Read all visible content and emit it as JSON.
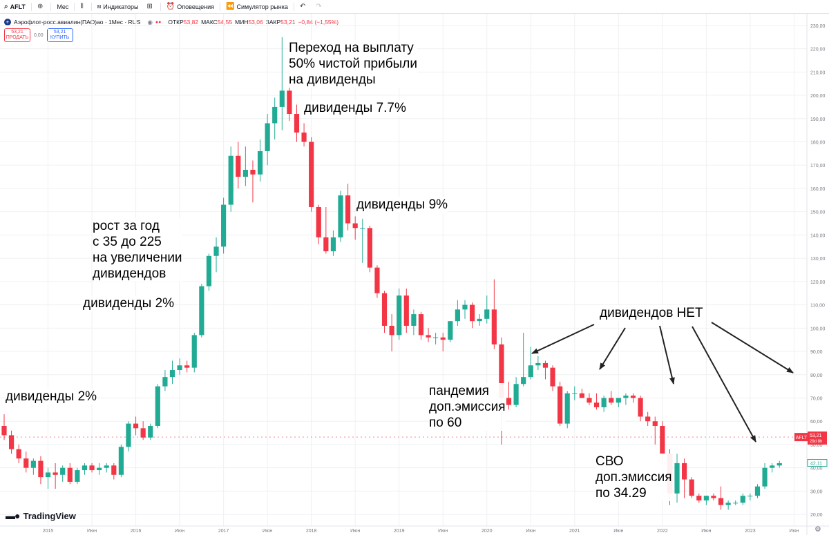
{
  "toolbar": {
    "symbol": "AFLT",
    "interval": "Мес",
    "indicators": "Индикаторы",
    "alerts": "Оповещения",
    "replay": "Симулятор рынка"
  },
  "legend": {
    "name": "Аэрофлот-росс.авиалин(ПАО)ао · 1Мес · RUS",
    "open_label": "ОТКР",
    "open": "53,82",
    "high_label": "МАКС",
    "high": "54,55",
    "low_label": "МИН",
    "low": "53,06",
    "close_label": "ЗАКР",
    "close": "53,21",
    "change": "−0,84 (−1,55%)"
  },
  "trade": {
    "sell_price": "53,21",
    "sell_label": "ПРОДАТЬ",
    "spread": "0,00",
    "buy_price": "53,21",
    "buy_label": "КУПИТЬ"
  },
  "price_tags": {
    "current_symbol": "AFLT",
    "current_price": "53,21",
    "countdown": "29d 8h",
    "secondary_price": "42,11"
  },
  "annotations": [
    {
      "lines": [
        "Переход на выплату",
        "50% чистой прибыли",
        "на дивиденды"
      ]
    },
    {
      "lines": [
        "дивиденды 7.7%"
      ]
    },
    {
      "lines": [
        "дивиденды 9%"
      ]
    },
    {
      "lines": [
        "рост за год",
        "с 35 до 225",
        "на увеличении",
        "дивидендов"
      ]
    },
    {
      "lines": [
        "дивиденды 2%"
      ]
    },
    {
      "lines": [
        "дивиденды 2%"
      ]
    },
    {
      "lines": [
        "дивидендов НЕТ"
      ]
    },
    {
      "lines": [
        "пандемия",
        "доп.эмиссия",
        "по 60"
      ]
    },
    {
      "lines": [
        "СВО",
        "доп.эмиссия",
        "по 34.29"
      ]
    }
  ],
  "logo": "TradingView",
  "colors": {
    "up": "#22ab94",
    "down": "#f23645",
    "grid": "#eef0f3",
    "axis": "#787b86"
  },
  "chart_data": {
    "type": "candlestick",
    "interval": "month",
    "y_range": [
      15,
      235
    ],
    "y_ticks": [
      20,
      30,
      40,
      50,
      60,
      70,
      80,
      90,
      100,
      110,
      120,
      130,
      140,
      150,
      160,
      170,
      180,
      190,
      200,
      210,
      220,
      230
    ],
    "y_tick_labels": [
      "20,00",
      "30,00",
      "40,00",
      "50,00",
      "60,00",
      "70,00",
      "80,00",
      "90,00",
      "100,00",
      "110,00",
      "120,00",
      "130,00",
      "140,00",
      "150,00",
      "160,00",
      "170,00",
      "180,00",
      "190,00",
      "200,00",
      "210,00",
      "220,00",
      "230,00"
    ],
    "x_range": [
      "2014-07",
      "2023-08"
    ],
    "x_ticks": [
      {
        "date": "2015-01",
        "label": "2015"
      },
      {
        "date": "2015-07",
        "label": "Июн"
      },
      {
        "date": "2016-01",
        "label": "2016"
      },
      {
        "date": "2016-07",
        "label": "Июн"
      },
      {
        "date": "2017-01",
        "label": "2017"
      },
      {
        "date": "2017-07",
        "label": "Июн"
      },
      {
        "date": "2018-01",
        "label": "2018"
      },
      {
        "date": "2018-07",
        "label": "Июн"
      },
      {
        "date": "2019-01",
        "label": "2019"
      },
      {
        "date": "2019-07",
        "label": "Июн"
      },
      {
        "date": "2020-01",
        "label": "2020"
      },
      {
        "date": "2020-07",
        "label": "Июн"
      },
      {
        "date": "2021-01",
        "label": "2021"
      },
      {
        "date": "2021-07",
        "label": "Июн"
      },
      {
        "date": "2022-01",
        "label": "2022"
      },
      {
        "date": "2022-07",
        "label": "Июн"
      },
      {
        "date": "2023-01",
        "label": "2023"
      },
      {
        "date": "2023-07",
        "label": "Июн"
      }
    ],
    "current_price": 53.21,
    "secondary_price": 42.11,
    "candles": [
      {
        "t": "2014-07",
        "o": 58,
        "h": 63,
        "l": 52,
        "c": 54
      },
      {
        "t": "2014-08",
        "o": 54,
        "h": 56,
        "l": 46,
        "c": 48
      },
      {
        "t": "2014-09",
        "o": 48,
        "h": 50,
        "l": 42,
        "c": 44
      },
      {
        "t": "2014-10",
        "o": 44,
        "h": 47,
        "l": 38,
        "c": 40
      },
      {
        "t": "2014-11",
        "o": 40,
        "h": 44,
        "l": 37,
        "c": 43
      },
      {
        "t": "2014-12",
        "o": 43,
        "h": 45,
        "l": 33,
        "c": 36
      },
      {
        "t": "2015-01",
        "o": 36,
        "h": 40,
        "l": 31,
        "c": 38
      },
      {
        "t": "2015-02",
        "o": 38,
        "h": 42,
        "l": 31,
        "c": 37
      },
      {
        "t": "2015-03",
        "o": 37,
        "h": 41,
        "l": 34,
        "c": 40
      },
      {
        "t": "2015-04",
        "o": 40,
        "h": 42,
        "l": 33,
        "c": 34
      },
      {
        "t": "2015-05",
        "o": 34,
        "h": 40,
        "l": 33,
        "c": 39
      },
      {
        "t": "2015-06",
        "o": 39,
        "h": 42,
        "l": 37,
        "c": 41
      },
      {
        "t": "2015-07",
        "o": 41,
        "h": 42,
        "l": 38,
        "c": 39
      },
      {
        "t": "2015-08",
        "o": 39,
        "h": 42,
        "l": 37,
        "c": 40
      },
      {
        "t": "2015-09",
        "o": 40,
        "h": 42,
        "l": 38,
        "c": 41
      },
      {
        "t": "2015-10",
        "o": 41,
        "h": 42,
        "l": 35,
        "c": 37
      },
      {
        "t": "2015-11",
        "o": 37,
        "h": 50,
        "l": 36,
        "c": 49
      },
      {
        "t": "2015-12",
        "o": 49,
        "h": 60,
        "l": 47,
        "c": 59
      },
      {
        "t": "2016-01",
        "o": 59,
        "h": 62,
        "l": 54,
        "c": 57
      },
      {
        "t": "2016-02",
        "o": 57,
        "h": 60,
        "l": 52,
        "c": 53
      },
      {
        "t": "2016-03",
        "o": 53,
        "h": 59,
        "l": 52,
        "c": 58
      },
      {
        "t": "2016-04",
        "o": 58,
        "h": 76,
        "l": 57,
        "c": 75
      },
      {
        "t": "2016-05",
        "o": 75,
        "h": 82,
        "l": 73,
        "c": 79
      },
      {
        "t": "2016-06",
        "o": 79,
        "h": 86,
        "l": 76,
        "c": 82
      },
      {
        "t": "2016-07",
        "o": 82,
        "h": 87,
        "l": 80,
        "c": 84
      },
      {
        "t": "2016-08",
        "o": 84,
        "h": 86,
        "l": 81,
        "c": 83
      },
      {
        "t": "2016-09",
        "o": 83,
        "h": 98,
        "l": 81,
        "c": 97
      },
      {
        "t": "2016-10",
        "o": 97,
        "h": 119,
        "l": 96,
        "c": 118
      },
      {
        "t": "2016-11",
        "o": 118,
        "h": 132,
        "l": 116,
        "c": 131
      },
      {
        "t": "2016-12",
        "o": 131,
        "h": 139,
        "l": 124,
        "c": 135
      },
      {
        "t": "2017-01",
        "o": 135,
        "h": 156,
        "l": 132,
        "c": 153
      },
      {
        "t": "2017-02",
        "o": 153,
        "h": 178,
        "l": 150,
        "c": 174
      },
      {
        "t": "2017-03",
        "o": 174,
        "h": 180,
        "l": 160,
        "c": 165
      },
      {
        "t": "2017-04",
        "o": 165,
        "h": 178,
        "l": 161,
        "c": 168
      },
      {
        "t": "2017-05",
        "o": 168,
        "h": 172,
        "l": 154,
        "c": 166
      },
      {
        "t": "2017-06",
        "o": 166,
        "h": 181,
        "l": 163,
        "c": 176
      },
      {
        "t": "2017-07",
        "o": 176,
        "h": 192,
        "l": 170,
        "c": 188
      },
      {
        "t": "2017-08",
        "o": 188,
        "h": 199,
        "l": 181,
        "c": 195
      },
      {
        "t": "2017-09",
        "o": 195,
        "h": 225,
        "l": 185,
        "c": 202
      },
      {
        "t": "2017-10",
        "o": 202,
        "h": 214,
        "l": 189,
        "c": 192
      },
      {
        "t": "2017-11",
        "o": 192,
        "h": 196,
        "l": 180,
        "c": 184
      },
      {
        "t": "2017-12",
        "o": 184,
        "h": 188,
        "l": 178,
        "c": 180
      },
      {
        "t": "2018-01",
        "o": 180,
        "h": 182,
        "l": 150,
        "c": 152
      },
      {
        "t": "2018-02",
        "o": 152,
        "h": 153,
        "l": 136,
        "c": 139
      },
      {
        "t": "2018-03",
        "o": 139,
        "h": 152,
        "l": 132,
        "c": 133
      },
      {
        "t": "2018-04",
        "o": 133,
        "h": 142,
        "l": 131,
        "c": 139
      },
      {
        "t": "2018-05",
        "o": 139,
        "h": 159,
        "l": 137,
        "c": 157
      },
      {
        "t": "2018-06",
        "o": 157,
        "h": 162,
        "l": 142,
        "c": 145
      },
      {
        "t": "2018-07",
        "o": 145,
        "h": 148,
        "l": 138,
        "c": 143
      },
      {
        "t": "2018-08",
        "o": 143,
        "h": 147,
        "l": 128,
        "c": 143
      },
      {
        "t": "2018-09",
        "o": 143,
        "h": 144,
        "l": 124,
        "c": 126
      },
      {
        "t": "2018-10",
        "o": 126,
        "h": 127,
        "l": 113,
        "c": 115
      },
      {
        "t": "2018-11",
        "o": 115,
        "h": 116,
        "l": 98,
        "c": 101
      },
      {
        "t": "2018-12",
        "o": 101,
        "h": 106,
        "l": 90,
        "c": 97
      },
      {
        "t": "2019-01",
        "o": 97,
        "h": 117,
        "l": 95,
        "c": 114
      },
      {
        "t": "2019-02",
        "o": 114,
        "h": 117,
        "l": 98,
        "c": 101
      },
      {
        "t": "2019-03",
        "o": 101,
        "h": 108,
        "l": 97,
        "c": 106
      },
      {
        "t": "2019-04",
        "o": 106,
        "h": 107,
        "l": 95,
        "c": 97
      },
      {
        "t": "2019-05",
        "o": 97,
        "h": 100,
        "l": 94,
        "c": 96
      },
      {
        "t": "2019-06",
        "o": 96,
        "h": 98,
        "l": 93,
        "c": 96
      },
      {
        "t": "2019-07",
        "o": 96,
        "h": 98,
        "l": 90,
        "c": 95
      },
      {
        "t": "2019-08",
        "o": 95,
        "h": 103,
        "l": 94,
        "c": 103
      },
      {
        "t": "2019-09",
        "o": 103,
        "h": 112,
        "l": 101,
        "c": 108
      },
      {
        "t": "2019-10",
        "o": 108,
        "h": 112,
        "l": 104,
        "c": 110
      },
      {
        "t": "2019-11",
        "o": 110,
        "h": 111,
        "l": 100,
        "c": 103
      },
      {
        "t": "2019-12",
        "o": 103,
        "h": 106,
        "l": 101,
        "c": 104
      },
      {
        "t": "2020-01",
        "o": 104,
        "h": 114,
        "l": 102,
        "c": 108
      },
      {
        "t": "2020-02",
        "o": 108,
        "h": 121,
        "l": 91,
        "c": 93
      },
      {
        "t": "2020-03",
        "o": 93,
        "h": 96,
        "l": 50,
        "c": 70
      },
      {
        "t": "2020-04",
        "o": 70,
        "h": 77,
        "l": 65,
        "c": 67
      },
      {
        "t": "2020-05",
        "o": 67,
        "h": 79,
        "l": 66,
        "c": 76
      },
      {
        "t": "2020-06",
        "o": 76,
        "h": 98,
        "l": 75,
        "c": 79
      },
      {
        "t": "2020-07",
        "o": 79,
        "h": 92,
        "l": 78,
        "c": 84
      },
      {
        "t": "2020-08",
        "o": 84,
        "h": 88,
        "l": 82,
        "c": 85
      },
      {
        "t": "2020-09",
        "o": 85,
        "h": 86,
        "l": 78,
        "c": 83
      },
      {
        "t": "2020-10",
        "o": 83,
        "h": 84,
        "l": 73,
        "c": 75
      },
      {
        "t": "2020-11",
        "o": 75,
        "h": 77,
        "l": 58,
        "c": 59
      },
      {
        "t": "2020-12",
        "o": 59,
        "h": 73,
        "l": 57,
        "c": 72
      },
      {
        "t": "2021-01",
        "o": 72,
        "h": 75,
        "l": 69,
        "c": 72
      },
      {
        "t": "2021-02",
        "o": 72,
        "h": 74,
        "l": 70,
        "c": 70
      },
      {
        "t": "2021-03",
        "o": 70,
        "h": 72,
        "l": 67,
        "c": 68
      },
      {
        "t": "2021-04",
        "o": 68,
        "h": 72,
        "l": 65,
        "c": 66
      },
      {
        "t": "2021-05",
        "o": 66,
        "h": 71,
        "l": 64,
        "c": 70
      },
      {
        "t": "2021-06",
        "o": 70,
        "h": 73,
        "l": 67,
        "c": 68
      },
      {
        "t": "2021-07",
        "o": 68,
        "h": 70,
        "l": 66,
        "c": 70
      },
      {
        "t": "2021-08",
        "o": 70,
        "h": 72,
        "l": 67,
        "c": 71
      },
      {
        "t": "2021-09",
        "o": 71,
        "h": 72,
        "l": 68,
        "c": 70
      },
      {
        "t": "2021-10",
        "o": 70,
        "h": 71,
        "l": 60,
        "c": 62
      },
      {
        "t": "2021-11",
        "o": 62,
        "h": 64,
        "l": 58,
        "c": 60
      },
      {
        "t": "2021-12",
        "o": 60,
        "h": 62,
        "l": 50,
        "c": 58
      },
      {
        "t": "2022-01",
        "o": 58,
        "h": 60,
        "l": 42,
        "c": 46
      },
      {
        "t": "2022-02",
        "o": 46,
        "h": 48,
        "l": 24,
        "c": 29
      },
      {
        "t": "2022-03",
        "o": 29,
        "h": 46,
        "l": 25,
        "c": 42
      },
      {
        "t": "2022-04",
        "o": 42,
        "h": 44,
        "l": 27,
        "c": 35
      },
      {
        "t": "2022-05",
        "o": 35,
        "h": 36,
        "l": 27,
        "c": 28
      },
      {
        "t": "2022-06",
        "o": 28,
        "h": 29,
        "l": 25,
        "c": 26
      },
      {
        "t": "2022-07",
        "o": 26,
        "h": 28,
        "l": 24,
        "c": 28
      },
      {
        "t": "2022-08",
        "o": 28,
        "h": 29,
        "l": 26,
        "c": 27
      },
      {
        "t": "2022-09",
        "o": 27,
        "h": 32,
        "l": 22,
        "c": 24
      },
      {
        "t": "2022-10",
        "o": 24,
        "h": 26,
        "l": 22,
        "c": 25
      },
      {
        "t": "2022-11",
        "o": 25,
        "h": 26,
        "l": 24,
        "c": 25
      },
      {
        "t": "2022-12",
        "o": 25,
        "h": 29,
        "l": 24,
        "c": 28
      },
      {
        "t": "2023-01",
        "o": 28,
        "h": 29,
        "l": 26,
        "c": 28
      },
      {
        "t": "2023-02",
        "o": 28,
        "h": 33,
        "l": 27,
        "c": 32
      },
      {
        "t": "2023-03",
        "o": 32,
        "h": 42,
        "l": 31,
        "c": 40
      },
      {
        "t": "2023-04",
        "o": 40,
        "h": 42,
        "l": 38,
        "c": 41
      },
      {
        "t": "2023-05",
        "o": 41,
        "h": 43,
        "l": 40,
        "c": 42
      }
    ]
  }
}
